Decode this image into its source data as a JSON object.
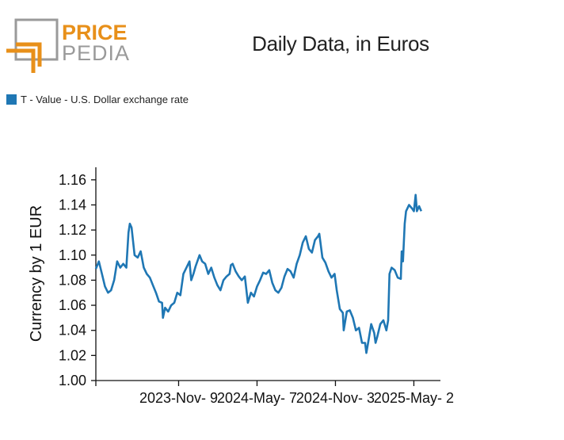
{
  "logo": {
    "top_word": "PRICE",
    "bottom_word": "PEDIA",
    "colors": {
      "orange": "#e8901a",
      "grey": "#9a9a9a"
    }
  },
  "legend": {
    "label": "T - Value - U.S. Dollar exchange rate",
    "color": "#1f77b4"
  },
  "chart_data": {
    "type": "line",
    "title": "Daily Data, in Euros",
    "xlabel": "",
    "ylabel": "Currency by 1 EUR",
    "ylim": [
      1.0,
      1.17
    ],
    "yticks": [
      1.0,
      1.02,
      1.04,
      1.06,
      1.08,
      1.1,
      1.12,
      1.14,
      1.16
    ],
    "ytick_labels": [
      "1.00",
      "1.02",
      "1.04",
      "1.06",
      "1.08",
      "1.10",
      "1.12",
      "1.14",
      "1.16"
    ],
    "xlim": [
      "2023-05-03",
      "2025-07-02"
    ],
    "xticks": [
      "2023-05-03",
      "2023-11-09",
      "2024-05-07",
      "2024-11-03",
      "2025-05-02"
    ],
    "xtick_labels": [
      "",
      "2023-Nov- 9",
      "2024-May- 7",
      "2024-Nov- 3",
      "2025-May- 2"
    ],
    "grid": false,
    "legend_position": "top-left",
    "series": [
      {
        "name": "T - Value - U.S. Dollar exchange rate",
        "color": "#1f77b4",
        "points": [
          [
            "2023-05-03",
            1.089
          ],
          [
            "2023-05-10",
            1.095
          ],
          [
            "2023-05-17",
            1.085
          ],
          [
            "2023-05-24",
            1.075
          ],
          [
            "2023-05-31",
            1.07
          ],
          [
            "2023-06-07",
            1.072
          ],
          [
            "2023-06-14",
            1.08
          ],
          [
            "2023-06-21",
            1.095
          ],
          [
            "2023-06-28",
            1.09
          ],
          [
            "2023-07-05",
            1.093
          ],
          [
            "2023-07-12",
            1.09
          ],
          [
            "2023-07-17",
            1.118
          ],
          [
            "2023-07-20",
            1.125
          ],
          [
            "2023-07-24",
            1.122
          ],
          [
            "2023-07-31",
            1.1
          ],
          [
            "2023-08-07",
            1.098
          ],
          [
            "2023-08-14",
            1.103
          ],
          [
            "2023-08-21",
            1.09
          ],
          [
            "2023-08-28",
            1.085
          ],
          [
            "2023-09-04",
            1.082
          ],
          [
            "2023-09-11",
            1.076
          ],
          [
            "2023-09-18",
            1.07
          ],
          [
            "2023-09-25",
            1.063
          ],
          [
            "2023-10-02",
            1.062
          ],
          [
            "2023-10-04",
            1.05
          ],
          [
            "2023-10-09",
            1.058
          ],
          [
            "2023-10-16",
            1.055
          ],
          [
            "2023-10-23",
            1.06
          ],
          [
            "2023-10-30",
            1.062
          ],
          [
            "2023-11-06",
            1.07
          ],
          [
            "2023-11-13",
            1.068
          ],
          [
            "2023-11-20",
            1.085
          ],
          [
            "2023-11-27",
            1.09
          ],
          [
            "2023-12-04",
            1.095
          ],
          [
            "2023-12-08",
            1.08
          ],
          [
            "2023-12-13",
            1.085
          ],
          [
            "2023-12-18",
            1.091
          ],
          [
            "2023-12-27",
            1.1
          ],
          [
            "2024-01-02",
            1.095
          ],
          [
            "2024-01-09",
            1.093
          ],
          [
            "2024-01-16",
            1.085
          ],
          [
            "2024-01-23",
            1.09
          ],
          [
            "2024-01-30",
            1.082
          ],
          [
            "2024-02-06",
            1.076
          ],
          [
            "2024-02-13",
            1.072
          ],
          [
            "2024-02-20",
            1.08
          ],
          [
            "2024-02-27",
            1.083
          ],
          [
            "2024-03-05",
            1.085
          ],
          [
            "2024-03-08",
            1.092
          ],
          [
            "2024-03-12",
            1.093
          ],
          [
            "2024-03-19",
            1.087
          ],
          [
            "2024-03-26",
            1.083
          ],
          [
            "2024-04-02",
            1.08
          ],
          [
            "2024-04-09",
            1.083
          ],
          [
            "2024-04-16",
            1.062
          ],
          [
            "2024-04-23",
            1.07
          ],
          [
            "2024-04-30",
            1.067
          ],
          [
            "2024-05-07",
            1.075
          ],
          [
            "2024-05-14",
            1.08
          ],
          [
            "2024-05-21",
            1.086
          ],
          [
            "2024-05-28",
            1.085
          ],
          [
            "2024-06-04",
            1.088
          ],
          [
            "2024-06-11",
            1.078
          ],
          [
            "2024-06-18",
            1.072
          ],
          [
            "2024-06-25",
            1.07
          ],
          [
            "2024-07-02",
            1.074
          ],
          [
            "2024-07-09",
            1.083
          ],
          [
            "2024-07-16",
            1.089
          ],
          [
            "2024-07-23",
            1.087
          ],
          [
            "2024-07-30",
            1.082
          ],
          [
            "2024-08-06",
            1.093
          ],
          [
            "2024-08-13",
            1.1
          ],
          [
            "2024-08-20",
            1.11
          ],
          [
            "2024-08-27",
            1.115
          ],
          [
            "2024-09-03",
            1.105
          ],
          [
            "2024-09-10",
            1.102
          ],
          [
            "2024-09-17",
            1.112
          ],
          [
            "2024-09-24",
            1.115
          ],
          [
            "2024-09-27",
            1.117
          ],
          [
            "2024-10-04",
            1.098
          ],
          [
            "2024-10-11",
            1.094
          ],
          [
            "2024-10-18",
            1.087
          ],
          [
            "2024-10-25",
            1.082
          ],
          [
            "2024-11-01",
            1.085
          ],
          [
            "2024-11-06",
            1.072
          ],
          [
            "2024-11-13",
            1.057
          ],
          [
            "2024-11-20",
            1.054
          ],
          [
            "2024-11-22",
            1.04
          ],
          [
            "2024-11-29",
            1.055
          ],
          [
            "2024-12-06",
            1.056
          ],
          [
            "2024-12-13",
            1.05
          ],
          [
            "2024-12-20",
            1.04
          ],
          [
            "2024-12-27",
            1.042
          ],
          [
            "2025-01-03",
            1.03
          ],
          [
            "2025-01-10",
            1.03
          ],
          [
            "2025-01-13",
            1.022
          ],
          [
            "2025-01-17",
            1.03
          ],
          [
            "2025-01-24",
            1.045
          ],
          [
            "2025-01-31",
            1.038
          ],
          [
            "2025-02-03",
            1.03
          ],
          [
            "2025-02-07",
            1.035
          ],
          [
            "2025-02-14",
            1.045
          ],
          [
            "2025-02-21",
            1.048
          ],
          [
            "2025-02-28",
            1.04
          ],
          [
            "2025-03-04",
            1.048
          ],
          [
            "2025-03-07",
            1.085
          ],
          [
            "2025-03-12",
            1.09
          ],
          [
            "2025-03-19",
            1.088
          ],
          [
            "2025-03-26",
            1.082
          ],
          [
            "2025-04-02",
            1.081
          ],
          [
            "2025-04-04",
            1.103
          ],
          [
            "2025-04-07",
            1.095
          ],
          [
            "2025-04-11",
            1.125
          ],
          [
            "2025-04-14",
            1.135
          ],
          [
            "2025-04-21",
            1.14
          ],
          [
            "2025-04-28",
            1.137
          ],
          [
            "2025-05-02",
            1.135
          ],
          [
            "2025-05-06",
            1.148
          ],
          [
            "2025-05-09",
            1.135
          ],
          [
            "2025-05-14",
            1.139
          ],
          [
            "2025-05-19",
            1.135
          ]
        ]
      }
    ]
  }
}
